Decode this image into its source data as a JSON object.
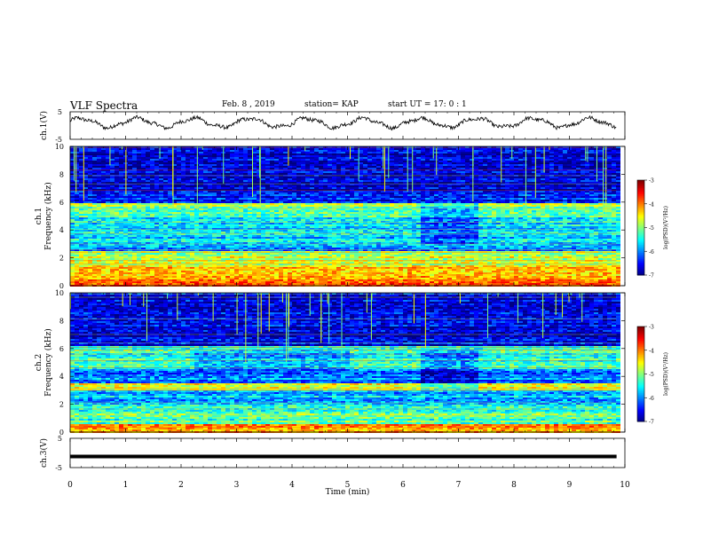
{
  "header": {
    "title": "VLF Spectra",
    "date": "Feb. 8 , 2019",
    "station": "station= KAP",
    "start": "start UT = 17: 0 : 1"
  },
  "chart_data": [
    {
      "type": "line",
      "panel": "ch1-waveform",
      "ylabel": "ch.1(V)",
      "ylim": [
        -5,
        5
      ],
      "yticks": [
        "5",
        "-5"
      ],
      "x_unit": "min",
      "xlim": [
        0,
        10
      ],
      "trace_end": 9.85,
      "note_trace": "noisy quasi-periodic waveform between roughly -2 and +3 V",
      "color": "#000000"
    },
    {
      "type": "heatmap",
      "panel": "ch1-spectrogram",
      "ylabel": "ch.1\nFrequency (kHz)",
      "ylim": [
        0,
        10
      ],
      "yticks": [
        "0",
        "2",
        "4",
        "6",
        "8",
        "10"
      ],
      "xlim": [
        0,
        10
      ],
      "trace_end": 9.85,
      "colorbar": {
        "label": "log(PSD)(V²/Hz)",
        "range": [
          -7,
          -3
        ],
        "ticks": [
          "-3",
          "-4",
          "-5",
          "-6",
          "-7"
        ]
      },
      "bands": [
        {
          "f0": 0,
          "f1": 0.5,
          "level": -3.8
        },
        {
          "f0": 0.5,
          "f1": 1.5,
          "level": -4.2
        },
        {
          "f0": 1.5,
          "f1": 2.5,
          "level": -4.8
        },
        {
          "f0": 2.5,
          "f1": 3.2,
          "level": -6.0
        },
        {
          "f0": 3.2,
          "f1": 5.0,
          "level": -5.6
        },
        {
          "f0": 5.0,
          "f1": 6.0,
          "level": -5.0
        },
        {
          "f0": 6.0,
          "f1": 6.8,
          "level": -6.4
        },
        {
          "f0": 6.8,
          "f1": 10,
          "level": -6.7
        }
      ]
    },
    {
      "type": "heatmap",
      "panel": "ch2-spectrogram",
      "ylabel": "ch.2\nFrequency (kHz)",
      "ylim": [
        0,
        10
      ],
      "yticks": [
        "0",
        "2",
        "4",
        "6",
        "8",
        "10"
      ],
      "xlim": [
        0,
        10
      ],
      "trace_end": 9.85,
      "colorbar": {
        "label": "log(PSD)(V²/Hz)",
        "range": [
          -7,
          -3
        ],
        "ticks": [
          "-3",
          "-4",
          "-5",
          "-6",
          "-7"
        ]
      },
      "bands": [
        {
          "f0": 0,
          "f1": 0.6,
          "level": -4.0
        },
        {
          "f0": 0.6,
          "f1": 2.0,
          "level": -5.2
        },
        {
          "f0": 2.0,
          "f1": 3.0,
          "level": -5.8
        },
        {
          "f0": 3.0,
          "f1": 3.6,
          "level": -4.6
        },
        {
          "f0": 3.6,
          "f1": 4.6,
          "level": -6.0
        },
        {
          "f0": 4.6,
          "f1": 6.2,
          "level": -5.3
        },
        {
          "f0": 6.2,
          "f1": 10,
          "level": -6.6
        }
      ]
    },
    {
      "type": "line",
      "panel": "ch3-waveform",
      "ylabel": "ch.3(V)",
      "ylim": [
        -5,
        5
      ],
      "yticks": [
        "5",
        "-5"
      ],
      "xlim": [
        0,
        10
      ],
      "trace_end": 9.85,
      "constant_value": -1.2,
      "color": "#000000"
    }
  ],
  "xaxis": {
    "label": "Time (min)",
    "ticks": [
      "0",
      "1",
      "2",
      "3",
      "4",
      "5",
      "6",
      "7",
      "8",
      "9",
      "10"
    ]
  }
}
